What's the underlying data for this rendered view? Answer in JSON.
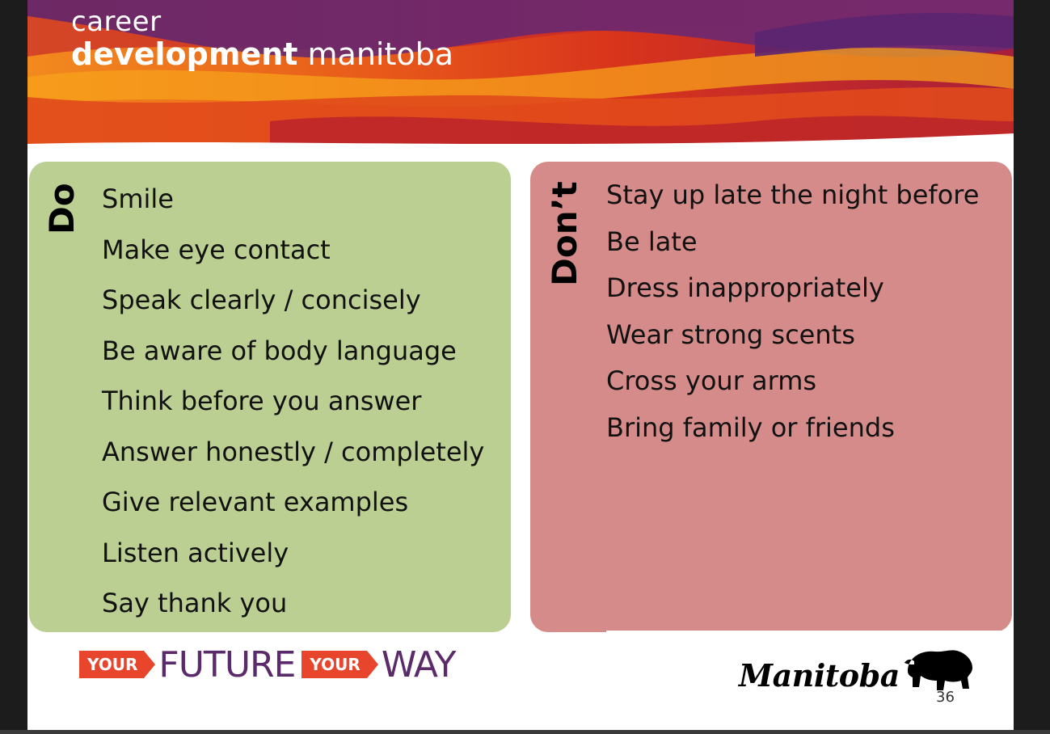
{
  "brand": {
    "line1": "career",
    "line2_bold": "development",
    "line2_light": "manitoba"
  },
  "do_panel": {
    "heading": "Do",
    "items": [
      "Smile",
      "Make eye contact",
      "Speak clearly / concisely",
      "Be aware of body language",
      "Think before you answer",
      "Answer honestly / completely",
      "Give relevant examples",
      "Listen actively",
      "Say thank you"
    ],
    "color": "#bccf92"
  },
  "dont_panel": {
    "heading": "Don’t",
    "items": [
      "Stay up late the night before",
      "Be late",
      "Dress inappropriately",
      "Wear strong scents",
      "Cross your arms",
      "Bring family or friends"
    ],
    "color": "#d58b8a"
  },
  "slogan": {
    "tag1": "YOUR",
    "word1": "FUTURE",
    "tag2": "YOUR",
    "word2": "WAY"
  },
  "gov_logo": {
    "word": "Manitoba",
    "icon": "bison-icon"
  },
  "page_number": "36"
}
